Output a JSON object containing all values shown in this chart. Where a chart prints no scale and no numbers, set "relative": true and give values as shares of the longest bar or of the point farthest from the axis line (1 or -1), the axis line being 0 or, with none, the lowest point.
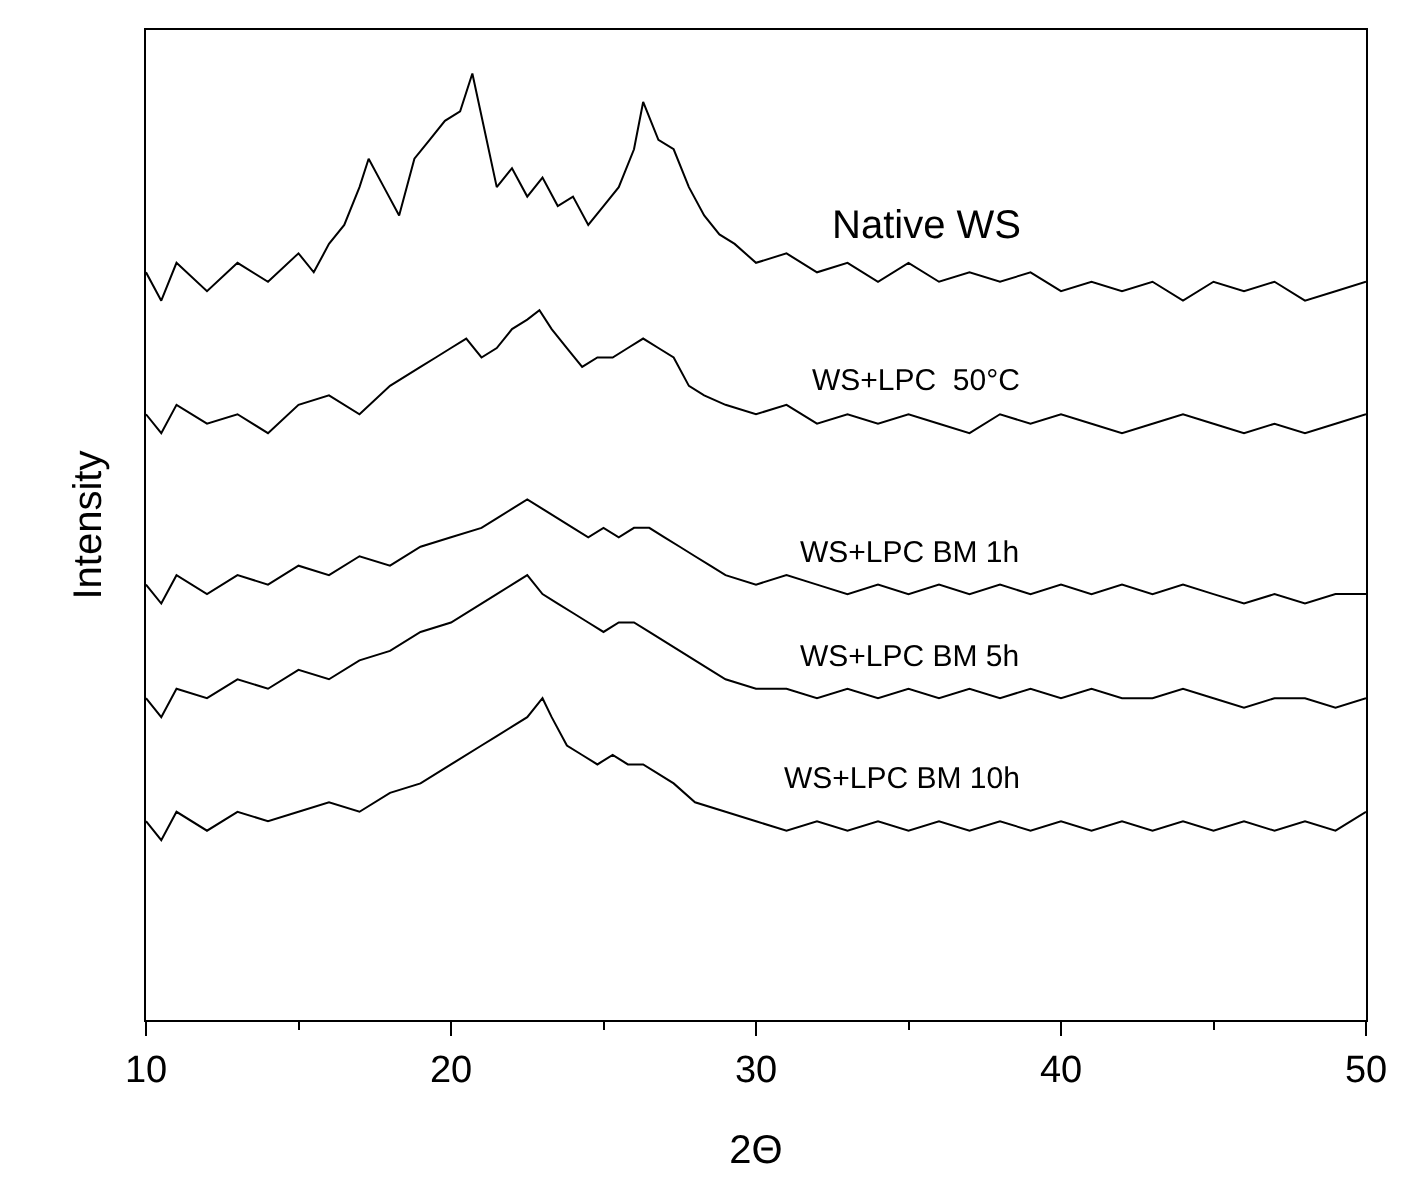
{
  "chart_data": {
    "type": "line",
    "xlabel": "2Θ",
    "ylabel": "Intensity",
    "relative": true,
    "xlim": [
      10,
      50
    ],
    "xticks": [
      10,
      20,
      30,
      40,
      50
    ],
    "legend": false,
    "marker": "none",
    "line_style": "solid",
    "series": [
      {
        "name": "Native WS",
        "color": "#000000",
        "x": [
          10,
          10.5,
          11,
          12,
          13,
          14,
          15,
          15.5,
          16,
          16.5,
          17,
          17.3,
          17.8,
          18.3,
          18.8,
          19.3,
          19.8,
          20.3,
          20.7,
          21.1,
          21.5,
          22,
          22.5,
          23,
          23.5,
          24,
          24.5,
          25,
          25.5,
          26,
          26.3,
          26.8,
          27.3,
          27.8,
          28.3,
          28.8,
          29.3,
          30,
          31,
          32,
          33,
          34,
          35,
          36,
          37,
          38,
          39,
          40,
          41,
          42,
          43,
          44,
          45,
          46,
          47,
          48,
          49,
          50
        ],
        "values": [
          0.79,
          0.76,
          0.8,
          0.77,
          0.8,
          0.78,
          0.81,
          0.79,
          0.82,
          0.84,
          0.88,
          0.91,
          0.88,
          0.85,
          0.91,
          0.93,
          0.95,
          0.96,
          1.0,
          0.94,
          0.88,
          0.9,
          0.87,
          0.89,
          0.86,
          0.87,
          0.84,
          0.86,
          0.88,
          0.92,
          0.97,
          0.93,
          0.92,
          0.88,
          0.85,
          0.83,
          0.82,
          0.8,
          0.81,
          0.79,
          0.8,
          0.78,
          0.8,
          0.78,
          0.79,
          0.78,
          0.79,
          0.77,
          0.78,
          0.77,
          0.78,
          0.76,
          0.78,
          0.77,
          0.78,
          0.76,
          0.77,
          0.78
        ]
      },
      {
        "name": "WS+LPC  50°C",
        "color": "#000000",
        "x": [
          10,
          10.5,
          11,
          12,
          13,
          14,
          15,
          16,
          17,
          18,
          19,
          19.5,
          20,
          20.5,
          21,
          21.5,
          22,
          22.5,
          22.9,
          23.3,
          23.8,
          24.3,
          24.8,
          25.3,
          25.8,
          26.3,
          26.8,
          27.3,
          27.8,
          28.3,
          29,
          30,
          31,
          32,
          33,
          34,
          35,
          36,
          37,
          38,
          39,
          40,
          41,
          42,
          43,
          44,
          45,
          46,
          47,
          48,
          49,
          50
        ],
        "values": [
          0.64,
          0.62,
          0.65,
          0.63,
          0.64,
          0.62,
          0.65,
          0.66,
          0.64,
          0.67,
          0.69,
          0.7,
          0.71,
          0.72,
          0.7,
          0.71,
          0.73,
          0.74,
          0.75,
          0.73,
          0.71,
          0.69,
          0.7,
          0.7,
          0.71,
          0.72,
          0.71,
          0.7,
          0.67,
          0.66,
          0.65,
          0.64,
          0.65,
          0.63,
          0.64,
          0.63,
          0.64,
          0.63,
          0.62,
          0.64,
          0.63,
          0.64,
          0.63,
          0.62,
          0.63,
          0.64,
          0.63,
          0.62,
          0.63,
          0.62,
          0.63,
          0.64
        ]
      },
      {
        "name": "WS+LPC BM 1h",
        "color": "#000000",
        "x": [
          10,
          10.5,
          11,
          12,
          13,
          14,
          15,
          16,
          17,
          18,
          19,
          20,
          21,
          21.5,
          22,
          22.5,
          23,
          23.5,
          24,
          24.5,
          25,
          25.5,
          26,
          26.5,
          27,
          27.5,
          28,
          28.5,
          29,
          30,
          31,
          32,
          33,
          34,
          35,
          36,
          37,
          38,
          39,
          40,
          41,
          42,
          43,
          44,
          45,
          46,
          47,
          48,
          49,
          50
        ],
        "values": [
          0.46,
          0.44,
          0.47,
          0.45,
          0.47,
          0.46,
          0.48,
          0.47,
          0.49,
          0.48,
          0.5,
          0.51,
          0.52,
          0.53,
          0.54,
          0.55,
          0.54,
          0.53,
          0.52,
          0.51,
          0.52,
          0.51,
          0.52,
          0.52,
          0.51,
          0.5,
          0.49,
          0.48,
          0.47,
          0.46,
          0.47,
          0.46,
          0.45,
          0.46,
          0.45,
          0.46,
          0.45,
          0.46,
          0.45,
          0.46,
          0.45,
          0.46,
          0.45,
          0.46,
          0.45,
          0.44,
          0.45,
          0.44,
          0.45,
          0.45
        ]
      },
      {
        "name": "WS+LPC BM 5h",
        "color": "#000000",
        "x": [
          10,
          10.5,
          11,
          12,
          13,
          14,
          15,
          16,
          17,
          18,
          19,
          20,
          21,
          21.5,
          22,
          22.5,
          23,
          23.5,
          24,
          24.5,
          25,
          25.5,
          26,
          26.5,
          27,
          27.5,
          28,
          28.5,
          29,
          30,
          31,
          32,
          33,
          34,
          35,
          36,
          37,
          38,
          39,
          40,
          41,
          42,
          43,
          44,
          45,
          46,
          47,
          48,
          49,
          50
        ],
        "values": [
          0.34,
          0.32,
          0.35,
          0.34,
          0.36,
          0.35,
          0.37,
          0.36,
          0.38,
          0.39,
          0.41,
          0.42,
          0.44,
          0.45,
          0.46,
          0.47,
          0.45,
          0.44,
          0.43,
          0.42,
          0.41,
          0.42,
          0.42,
          0.41,
          0.4,
          0.39,
          0.38,
          0.37,
          0.36,
          0.35,
          0.35,
          0.34,
          0.35,
          0.34,
          0.35,
          0.34,
          0.35,
          0.34,
          0.35,
          0.34,
          0.35,
          0.34,
          0.34,
          0.35,
          0.34,
          0.33,
          0.34,
          0.34,
          0.33,
          0.34
        ]
      },
      {
        "name": "WS+LPC BM 10h",
        "color": "#000000",
        "x": [
          10,
          10.5,
          11,
          12,
          13,
          14,
          15,
          16,
          17,
          18,
          19,
          20,
          21,
          21.5,
          22,
          22.5,
          23,
          23.3,
          23.8,
          24.3,
          24.8,
          25.3,
          25.8,
          26.3,
          26.8,
          27.3,
          28,
          29,
          30,
          31,
          32,
          33,
          34,
          35,
          36,
          37,
          38,
          39,
          40,
          41,
          42,
          43,
          44,
          45,
          46,
          47,
          48,
          49,
          50
        ],
        "values": [
          0.21,
          0.19,
          0.22,
          0.2,
          0.22,
          0.21,
          0.22,
          0.23,
          0.22,
          0.24,
          0.25,
          0.27,
          0.29,
          0.3,
          0.31,
          0.32,
          0.34,
          0.32,
          0.29,
          0.28,
          0.27,
          0.28,
          0.27,
          0.27,
          0.26,
          0.25,
          0.23,
          0.22,
          0.21,
          0.2,
          0.21,
          0.2,
          0.21,
          0.2,
          0.21,
          0.2,
          0.21,
          0.2,
          0.21,
          0.2,
          0.21,
          0.2,
          0.21,
          0.2,
          0.21,
          0.2,
          0.21,
          0.2,
          0.22
        ]
      }
    ]
  }
}
